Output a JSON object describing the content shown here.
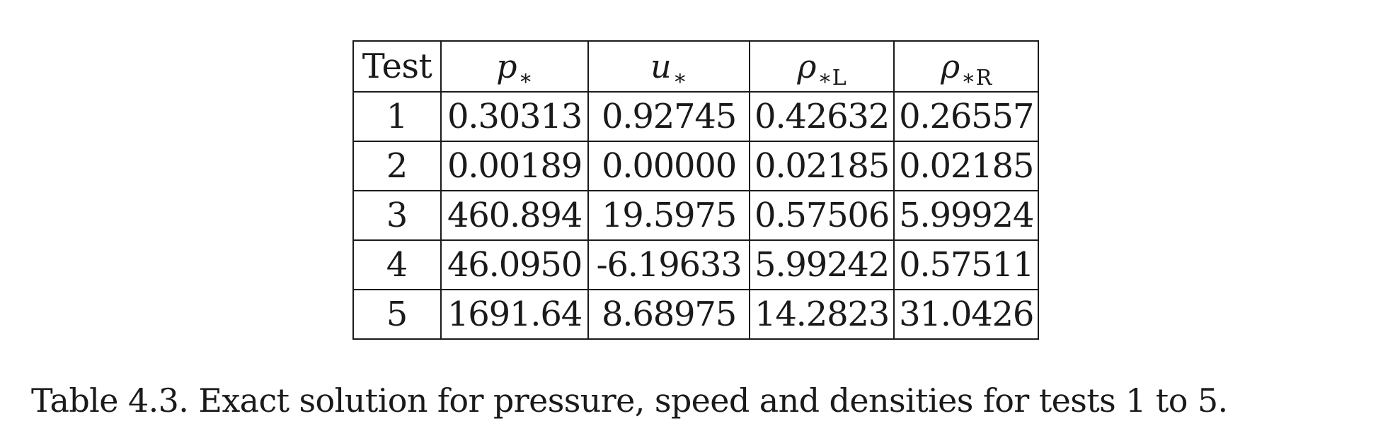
{
  "table": {
    "headers": {
      "test": "Test",
      "p_symbol": "p",
      "p_sub": "∗",
      "u_symbol": "u",
      "u_sub": "∗",
      "rho_l_symbol": "ρ",
      "rho_l_sub": "∗L",
      "rho_r_symbol": "ρ",
      "rho_r_sub": "∗R"
    },
    "rows": [
      [
        "1",
        "0.30313",
        "0.92745",
        "0.42632",
        "0.26557"
      ],
      [
        "2",
        "0.00189",
        "0.00000",
        "0.02185",
        "0.02185"
      ],
      [
        "3",
        "460.894",
        "19.5975",
        "0.57506",
        "5.99924"
      ],
      [
        "4",
        "46.0950",
        "-6.19633",
        "5.99242",
        "0.57511"
      ],
      [
        "5",
        "1691.64",
        "8.68975",
        "14.2823",
        "31.0426"
      ]
    ]
  },
  "caption": "Table 4.3. Exact solution for pressure, speed and densities for tests 1 to 5."
}
